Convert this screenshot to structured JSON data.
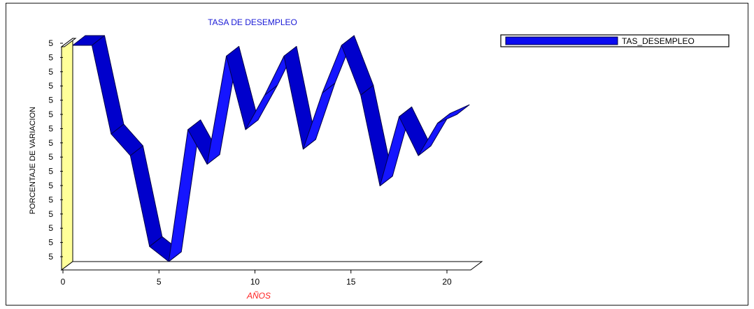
{
  "chart_data": {
    "type": "line",
    "style": "3d-ribbon",
    "title": "TASA DE DESEMPLEO",
    "xlabel": "AÑOS",
    "ylabel": "PORCENTAJE DE VARIACION",
    "x_ticks": [
      "0",
      "5",
      "10",
      "15",
      "20"
    ],
    "y_tick_labels": [
      "5",
      "5",
      "5",
      "5",
      "5",
      "5",
      "5",
      "5",
      "5",
      "5",
      "5",
      "5",
      "5",
      "5",
      "5",
      "5"
    ],
    "xlim": [
      0,
      20
    ],
    "ylim": [
      0,
      1
    ],
    "y_note": "y-axis tick labels all read 5; values below are relative levels (0 = axis bottom, 1 = axis top)",
    "series": [
      {
        "name": "TAS_DESEMPLEO",
        "color": "#0b0bf0",
        "x": [
          0,
          1,
          2,
          3,
          4,
          5,
          6,
          7,
          8,
          9,
          10,
          11,
          12,
          13,
          14,
          15,
          16,
          17,
          18,
          19,
          20
        ],
        "values": [
          1.0,
          1.0,
          0.59,
          0.49,
          0.07,
          0.0,
          0.61,
          0.45,
          0.95,
          0.61,
          0.77,
          0.95,
          0.52,
          0.78,
          1.0,
          0.77,
          0.35,
          0.67,
          0.49,
          0.64,
          0.68
        ]
      }
    ],
    "legend_position": "top-right",
    "grid": false,
    "wall_color": "#ffff99",
    "border_color": "#1a1a1a"
  }
}
